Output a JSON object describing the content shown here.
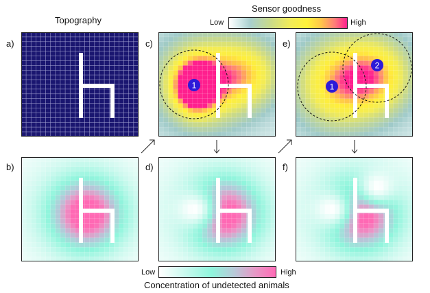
{
  "figure": {
    "topography_title": "Topography",
    "sensor_title": "Sensor goodness",
    "sensor_scale": {
      "low": "Low",
      "high": "High"
    },
    "concentration_title": "Concentration of undetected animals",
    "concentration_scale": {
      "low": "Low",
      "high": "High"
    },
    "panels": [
      {
        "id": "a",
        "label": "a)"
      },
      {
        "id": "b",
        "label": "b)"
      },
      {
        "id": "c",
        "label": "c)",
        "markers": [
          "1"
        ]
      },
      {
        "id": "d",
        "label": "d)"
      },
      {
        "id": "e",
        "label": "e)",
        "markers": [
          "1",
          "2"
        ]
      },
      {
        "id": "f",
        "label": "f)"
      }
    ]
  },
  "colors": {
    "topography_bg": "#1a1670",
    "barrier": "#ffffff",
    "marker": "#2d1ad8",
    "sensor_low": "#ffffff",
    "sensor_mid": "#ffef3a",
    "sensor_high": "#ff1f8e",
    "concentration_low": "#ffffff",
    "concentration_mid": "#8ff5dc",
    "concentration_high": "#ff69b4"
  }
}
